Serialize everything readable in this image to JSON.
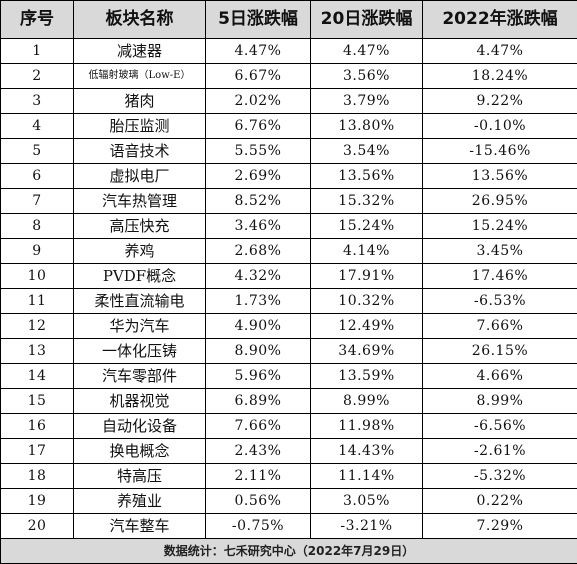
{
  "table": {
    "headers": [
      "序号",
      "板块名称",
      "5日涨跌幅",
      "20日涨跌幅",
      "2022年涨跌幅"
    ],
    "rows": [
      {
        "no": "1",
        "name": "减速器",
        "d5": "4.47%",
        "d20": "4.47%",
        "y2022": "4.47%"
      },
      {
        "no": "2",
        "name": "低辐射玻璃（Low-E）",
        "d5": "6.67%",
        "d20": "3.56%",
        "y2022": "18.24%"
      },
      {
        "no": "3",
        "name": "猪肉",
        "d5": "2.02%",
        "d20": "3.79%",
        "y2022": "9.22%"
      },
      {
        "no": "4",
        "name": "胎压监测",
        "d5": "6.76%",
        "d20": "13.80%",
        "y2022": "-0.10%"
      },
      {
        "no": "5",
        "name": "语音技术",
        "d5": "5.55%",
        "d20": "3.54%",
        "y2022": "-15.46%"
      },
      {
        "no": "6",
        "name": "虚拟电厂",
        "d5": "2.69%",
        "d20": "13.56%",
        "y2022": "13.56%"
      },
      {
        "no": "7",
        "name": "汽车热管理",
        "d5": "8.52%",
        "d20": "15.32%",
        "y2022": "26.95%"
      },
      {
        "no": "8",
        "name": "高压快充",
        "d5": "3.46%",
        "d20": "15.24%",
        "y2022": "15.24%"
      },
      {
        "no": "9",
        "name": "养鸡",
        "d5": "2.68%",
        "d20": "4.14%",
        "y2022": "3.45%"
      },
      {
        "no": "10",
        "name": "PVDF概念",
        "d5": "4.32%",
        "d20": "17.91%",
        "y2022": "17.46%"
      },
      {
        "no": "11",
        "name": "柔性直流输电",
        "d5": "1.73%",
        "d20": "10.32%",
        "y2022": "-6.53%"
      },
      {
        "no": "12",
        "name": "华为汽车",
        "d5": "4.90%",
        "d20": "12.49%",
        "y2022": "7.66%"
      },
      {
        "no": "13",
        "name": "一体化压铸",
        "d5": "8.90%",
        "d20": "34.69%",
        "y2022": "26.15%"
      },
      {
        "no": "14",
        "name": "汽车零部件",
        "d5": "5.96%",
        "d20": "13.59%",
        "y2022": "4.66%"
      },
      {
        "no": "15",
        "name": "机器视觉",
        "d5": "6.89%",
        "d20": "8.99%",
        "y2022": "8.99%"
      },
      {
        "no": "16",
        "name": "自动化设备",
        "d5": "7.66%",
        "d20": "11.98%",
        "y2022": "-6.56%"
      },
      {
        "no": "17",
        "name": "换电概念",
        "d5": "2.43%",
        "d20": "14.43%",
        "y2022": "-2.61%"
      },
      {
        "no": "18",
        "name": "特高压",
        "d5": "2.11%",
        "d20": "11.14%",
        "y2022": "-5.32%"
      },
      {
        "no": "19",
        "name": "养殖业",
        "d5": "0.56%",
        "d20": "3.05%",
        "y2022": "0.22%"
      },
      {
        "no": "20",
        "name": "汽车整车",
        "d5": "-0.75%",
        "d20": "-3.21%",
        "y2022": "7.29%"
      }
    ],
    "footer": "数据统计：七禾研究中心（2022年7月29日）"
  },
  "colors": {
    "header_bg": "#d9d9d9",
    "footer_bg": "#d9d9d9",
    "border": "#000000"
  }
}
